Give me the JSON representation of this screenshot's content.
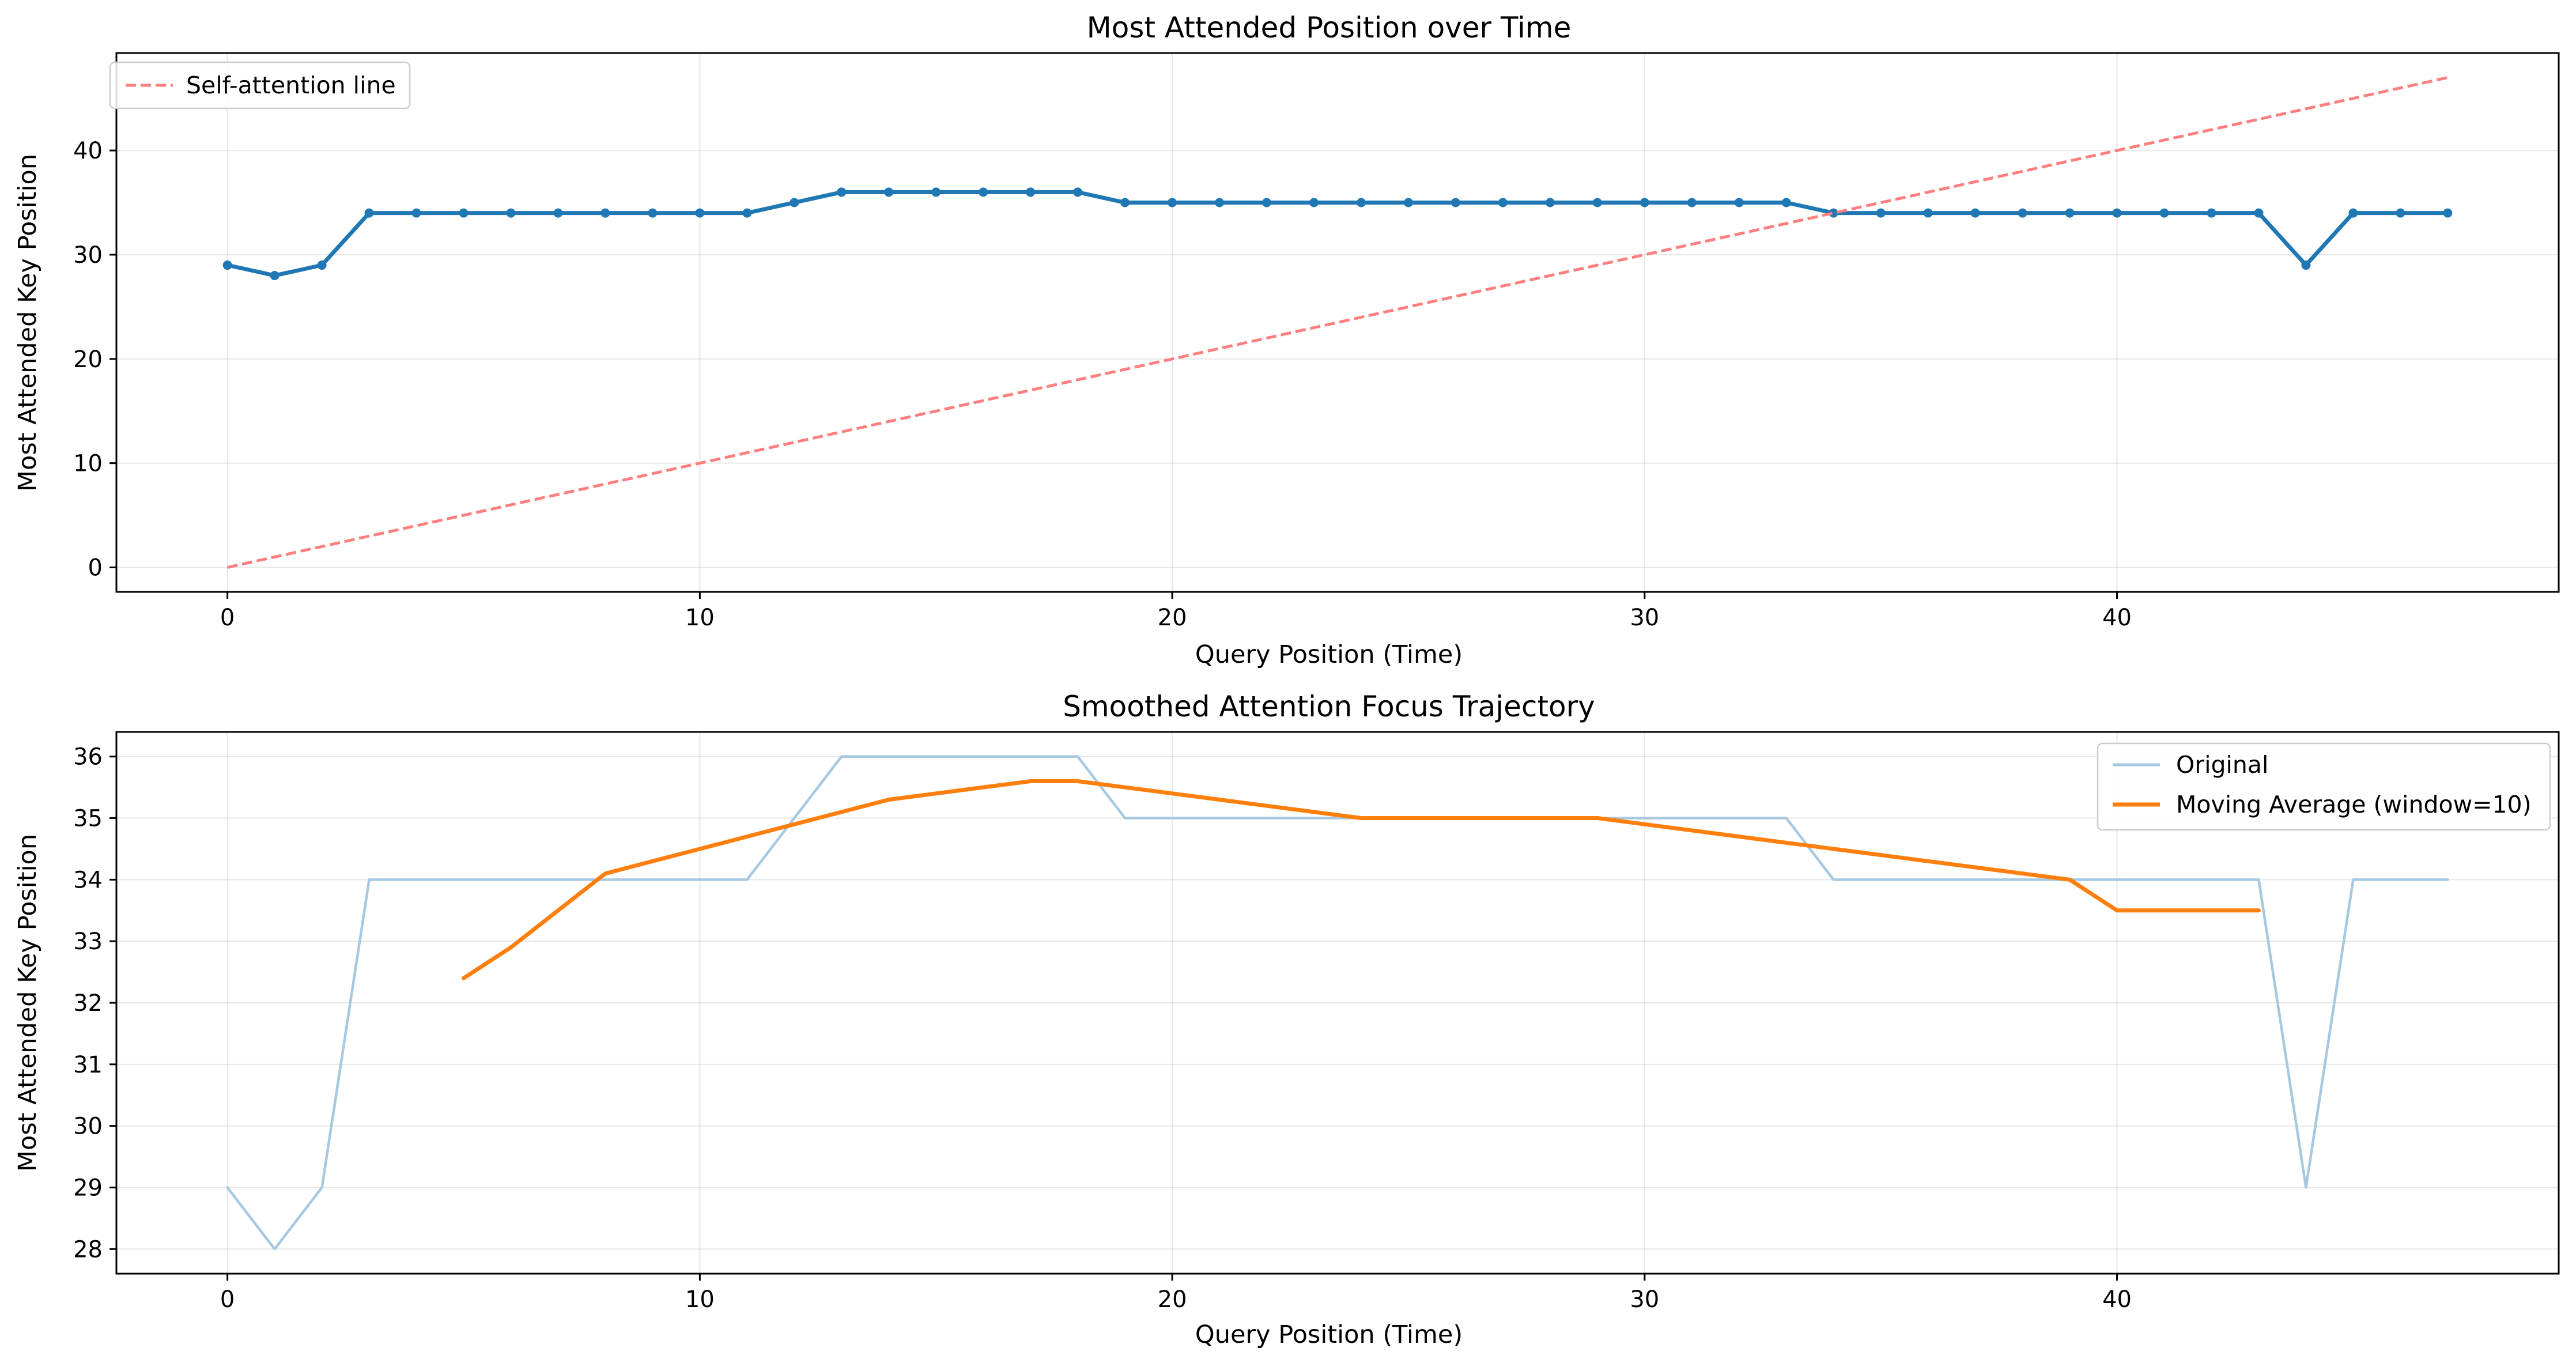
{
  "chart_data": [
    {
      "type": "line",
      "title": "Most Attended Position over Time",
      "xlabel": "Query Position (Time)",
      "ylabel": "Most Attended Key Position",
      "xlim": [
        -2.35,
        49.35
      ],
      "ylim": [
        -2.35,
        49.35
      ],
      "xticks": [
        0,
        10,
        20,
        30,
        40
      ],
      "yticks": [
        0,
        10,
        20,
        30,
        40
      ],
      "grid": true,
      "legend_position": "upper-left",
      "series": [
        {
          "color": "#1f77b4",
          "style": "solid-with-markers",
          "x": [
            0,
            1,
            2,
            3,
            4,
            5,
            6,
            7,
            8,
            9,
            10,
            11,
            12,
            13,
            14,
            15,
            16,
            17,
            18,
            19,
            20,
            21,
            22,
            23,
            24,
            25,
            26,
            27,
            28,
            29,
            30,
            31,
            32,
            33,
            34,
            35,
            36,
            37,
            38,
            39,
            40,
            41,
            42,
            43,
            44,
            45,
            46,
            47
          ],
          "y": [
            29,
            28,
            29,
            34,
            34,
            34,
            34,
            34,
            34,
            34,
            34,
            34,
            35,
            36,
            36,
            36,
            36,
            36,
            36,
            35,
            35,
            35,
            35,
            35,
            35,
            35,
            35,
            35,
            35,
            35,
            35,
            35,
            35,
            35,
            34,
            34,
            34,
            34,
            34,
            34,
            34,
            34,
            34,
            34,
            29,
            34,
            34,
            34
          ]
        },
        {
          "name": "Self-attention line",
          "color": "#ff7f7f",
          "style": "dashed",
          "x": [
            0,
            47
          ],
          "y": [
            0,
            47
          ]
        }
      ]
    },
    {
      "type": "line",
      "title": "Smoothed Attention Focus Trajectory",
      "xlabel": "Query Position (Time)",
      "ylabel": "Most Attended Key Position",
      "xlim": [
        -2.35,
        49.35
      ],
      "ylim": [
        27.6,
        36.4
      ],
      "xticks": [
        0,
        10,
        20,
        30,
        40
      ],
      "yticks": [
        28,
        29,
        30,
        31,
        32,
        33,
        34,
        35,
        36
      ],
      "grid": true,
      "legend_position": "upper-right",
      "series": [
        {
          "name": "Original",
          "color": "#a6c8e0",
          "style": "solid-thin",
          "x": [
            0,
            1,
            2,
            3,
            4,
            5,
            6,
            7,
            8,
            9,
            10,
            11,
            12,
            13,
            14,
            15,
            16,
            17,
            18,
            19,
            20,
            21,
            22,
            23,
            24,
            25,
            26,
            27,
            28,
            29,
            30,
            31,
            32,
            33,
            34,
            35,
            36,
            37,
            38,
            39,
            40,
            41,
            42,
            43,
            44,
            45,
            46,
            47
          ],
          "y": [
            29,
            28,
            29,
            34,
            34,
            34,
            34,
            34,
            34,
            34,
            34,
            34,
            35,
            36,
            36,
            36,
            36,
            36,
            36,
            35,
            35,
            35,
            35,
            35,
            35,
            35,
            35,
            35,
            35,
            35,
            35,
            35,
            35,
            35,
            34,
            34,
            34,
            34,
            34,
            34,
            34,
            34,
            34,
            34,
            29,
            34,
            34,
            34
          ]
        },
        {
          "name": "Moving Average (window=10)",
          "color": "#ff7f0e",
          "style": "solid-thick",
          "x": [
            5,
            6,
            7,
            8,
            9,
            10,
            11,
            12,
            13,
            14,
            15,
            16,
            17,
            18,
            19,
            20,
            21,
            22,
            23,
            24,
            25,
            26,
            27,
            28,
            29,
            30,
            31,
            32,
            33,
            34,
            35,
            36,
            37,
            38,
            39,
            40,
            41,
            42,
            43
          ],
          "y": [
            32.4,
            32.9,
            33.5,
            34.1,
            34.3,
            34.5,
            34.7,
            34.9,
            35.1,
            35.3,
            35.4,
            35.5,
            35.6,
            35.6,
            35.5,
            35.4,
            35.3,
            35.2,
            35.1,
            35.0,
            35.0,
            35.0,
            35.0,
            35.0,
            35.0,
            34.9,
            34.8,
            34.7,
            34.6,
            34.5,
            34.4,
            34.3,
            34.2,
            34.1,
            34.0,
            33.5,
            33.5,
            33.5,
            33.5
          ]
        }
      ]
    }
  ]
}
